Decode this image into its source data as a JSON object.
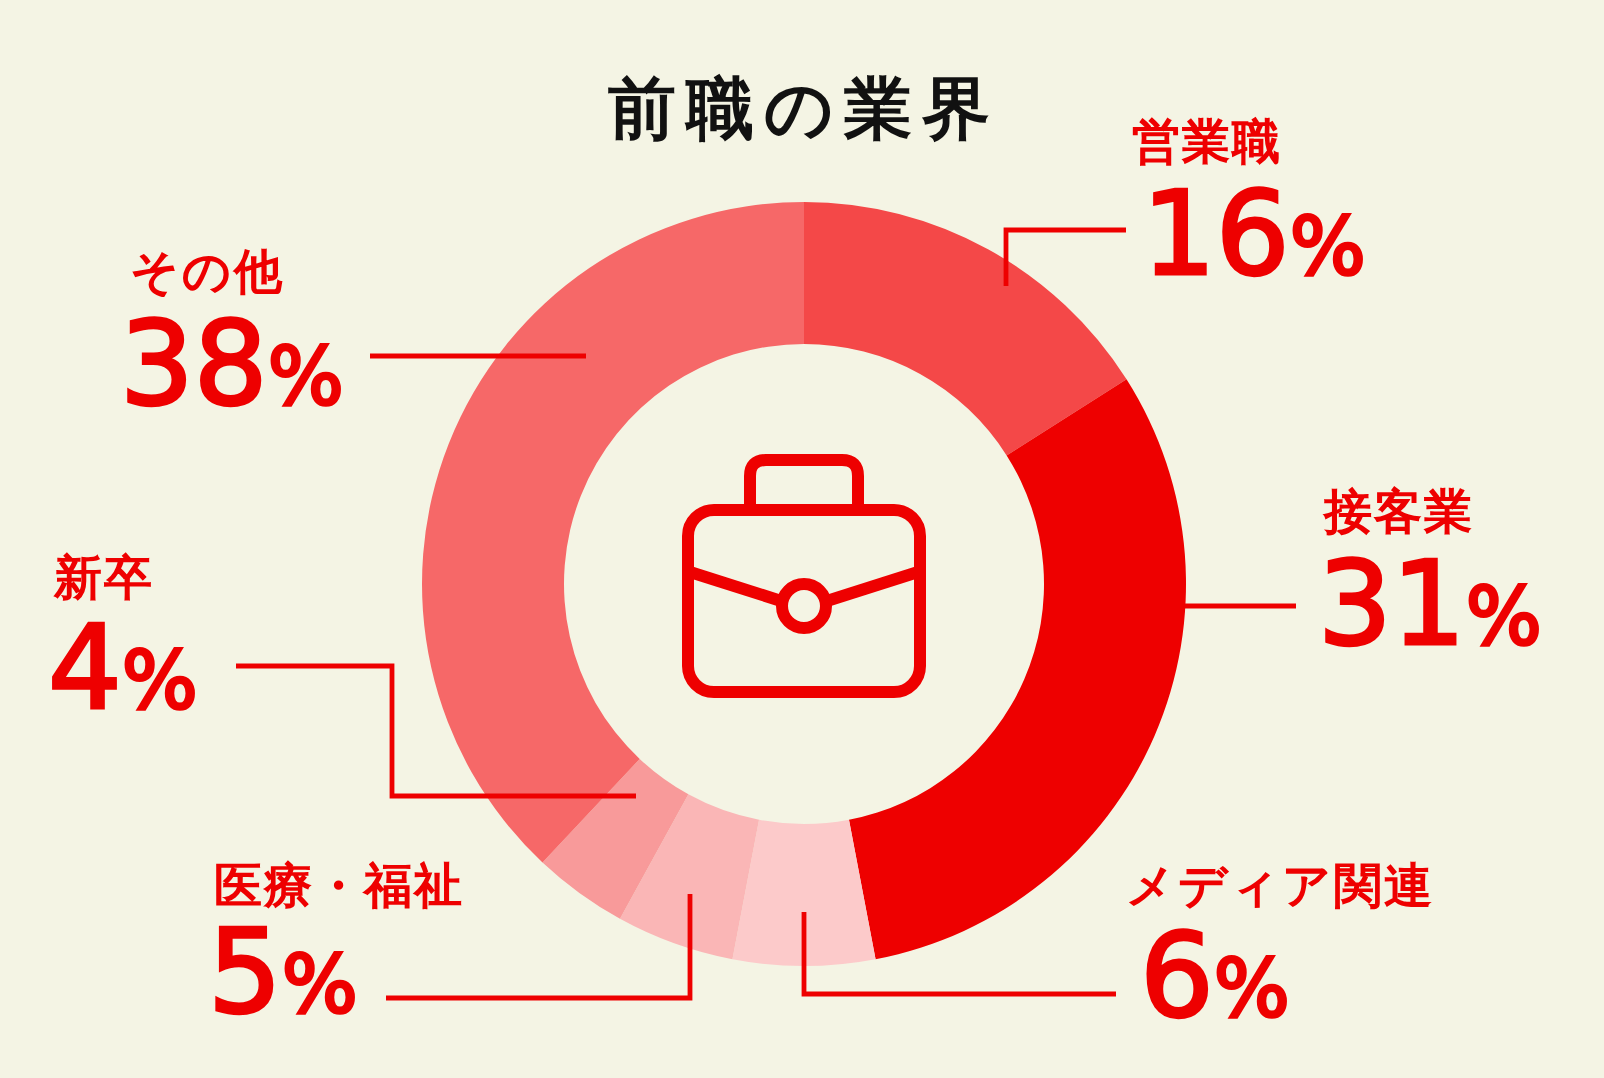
{
  "chart_data": {
    "type": "donut",
    "title": "前職の業界",
    "categories": [
      "営業職",
      "接客業",
      "メディア関連",
      "医療・福祉",
      "新卒",
      "その他"
    ],
    "values": [
      16,
      31,
      6,
      5,
      4,
      38
    ],
    "colors": [
      "#f44848",
      "#ee0000",
      "#fccaca",
      "#fab6b6",
      "#f89a9a",
      "#f66868"
    ],
    "value_labels": [
      "16%",
      "31%",
      "6%",
      "5%",
      "4%",
      "38%"
    ]
  }
}
